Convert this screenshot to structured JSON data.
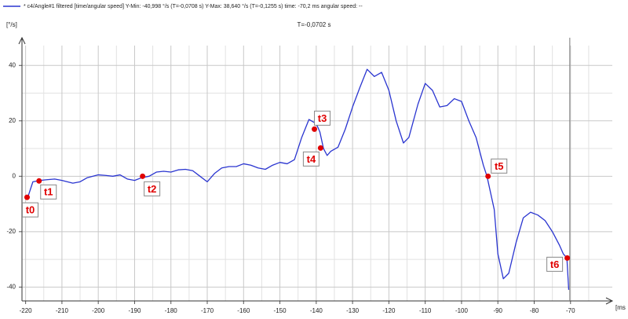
{
  "chart_data": {
    "type": "line",
    "subtitle": "T=-0,0702 s",
    "y_label": "[°/s]",
    "x_label": "[ms",
    "xlim": [
      -221,
      -58.5
    ],
    "ylim": [
      -45,
      50
    ],
    "xticks": [
      -220,
      -210,
      -200,
      -190,
      -180,
      -170,
      -160,
      -150,
      -140,
      -130,
      -120,
      -110,
      -100,
      -90,
      -80,
      -70
    ],
    "yticks": [
      -40,
      -20,
      0,
      20,
      40
    ],
    "xminorticks": [
      -215,
      -205,
      -195,
      -185,
      -175,
      -165,
      -155,
      -145,
      -135,
      -125,
      -115,
      -105,
      -95,
      -85,
      -75,
      -65
    ],
    "yminorticks": [
      -30,
      -10,
      10,
      30
    ],
    "grid": true,
    "cursor": -70.2,
    "x": [
      -219.5,
      -218,
      -216,
      -214.5,
      -212,
      -210,
      -207,
      -205,
      -203,
      -200,
      -198,
      -196,
      -194,
      -192,
      -190,
      -188,
      -186,
      -184,
      -182,
      -180,
      -178,
      -176,
      -174,
      -172,
      -170,
      -168,
      -166,
      -164,
      -162,
      -160,
      -158,
      -156,
      -154,
      -152,
      -150,
      -148,
      -146,
      -144,
      -142,
      -140,
      -139,
      -138,
      -137,
      -136,
      -134,
      -132,
      -130,
      -128,
      -126,
      -124,
      -122,
      -120,
      -118,
      -116,
      -114.5,
      -112,
      -110,
      -108,
      -106,
      -104,
      -102,
      -100,
      -98,
      -96,
      -94,
      -93,
      -91,
      -90,
      -88.5,
      -87,
      -85,
      -83,
      -81,
      -79,
      -77,
      -75,
      -73,
      -72,
      -71,
      -70.5
    ],
    "series": [
      {
        "name": "* c4/Angle#1 filtered [time/angular speed] Y-Min: -40,998 °/s (T=-0,0708 s) Y-Max: 38,640 °/s (T=-0,1255 s) time: -70,2 ms angular speed: --",
        "color": "#2a35d0",
        "values": [
          -8,
          -2,
          -1.5,
          -1.3,
          -1,
          -1.5,
          -2.5,
          -2,
          -0.5,
          0.5,
          0.3,
          0,
          0.5,
          -1,
          -1.5,
          -0.5,
          0,
          1.5,
          1.8,
          1.5,
          2.3,
          2.5,
          2,
          0,
          -2,
          1,
          3,
          3.5,
          3.5,
          4.5,
          4,
          3,
          2.5,
          4,
          5,
          4.5,
          6,
          14,
          20.5,
          19,
          16,
          10,
          7.5,
          9,
          10.5,
          17,
          25,
          32,
          38.6,
          36,
          37.5,
          31,
          20,
          12,
          14,
          26,
          33.5,
          31,
          25,
          25.5,
          28,
          27,
          20,
          14,
          4,
          0,
          -12,
          -28,
          -37,
          -35,
          -24,
          -15,
          -13,
          -14,
          -16,
          -20,
          -25,
          -28,
          -29.5,
          -41
        ]
      }
    ],
    "annotations": [
      {
        "text": "t0",
        "x": -219.6,
        "y": -7.6
      },
      {
        "text": "t1",
        "x": -216.3,
        "y": -1.7
      },
      {
        "text": "t2",
        "x": -187.8,
        "y": 0
      },
      {
        "text": "t3",
        "x": -140.5,
        "y": 17
      },
      {
        "text": "t4",
        "x": -138.8,
        "y": 10.2
      },
      {
        "text": "t5",
        "x": -92.7,
        "y": 0
      },
      {
        "text": "t6",
        "x": -70.9,
        "y": -29.5
      }
    ]
  }
}
